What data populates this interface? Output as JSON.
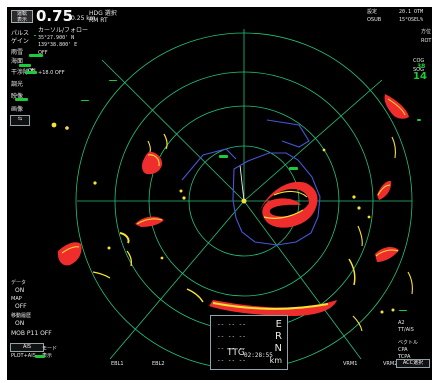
{
  "top_left": {
    "mode_box_line1": "運転",
    "mode_box_line2": "表示",
    "range_value": "0.75",
    "range_sub": "/0.25 km",
    "head_mode": "HDG 選択",
    "display_mode": "RM RT",
    "lines": [
      "パルス",
      "ゲイン",
      "雨雪",
      "海面",
      "干渉除去",
      "調光",
      "映像",
      "画像"
    ],
    "cursor_label": "カーソル/フォロー",
    "cursor_values": [
      "35°27.900' N",
      "139°38.800' E"
    ],
    "small_labels": [
      "OFF",
      "ON",
      "+18.0 OFF"
    ]
  },
  "top_right": {
    "labels": [
      "設定",
      "OSUB"
    ],
    "values": [
      "20.1 OTM",
      "15°OSEL%"
    ],
    "lines": [
      "方位",
      "ROT",
      "COG",
      "SOG"
    ],
    "cog_value": "38",
    "sog_value": "14"
  },
  "left_panel": {
    "labels": [
      "データ",
      "ON",
      "MAP",
      "OFF",
      "移動履歴",
      "ON"
    ],
    "mob_label": "MOB P11 OFF",
    "bottom_labels": [
      "AIS",
      "PLOT+AIS",
      "モード",
      "表示"
    ]
  },
  "bottom": {
    "ebl1": "EBL1",
    "ebl2": "EBL2",
    "vrm1": "VRM1",
    "vrm2": "VRM2",
    "ttg": "TTG",
    "ttg_time": "02:28:55",
    "e_label": "E",
    "r_label": "R",
    "n_label": "N",
    "km_label": "km"
  },
  "right_panel": {
    "lines": [
      "A2",
      "TT/AIS",
      "ベクトル",
      "CPA",
      "TCPA",
      "ACC選択"
    ]
  },
  "colors": {
    "background": "#000000",
    "ring": "#24c27a",
    "echo_red": "#f02d2d",
    "echo_yellow": "#f5e332",
    "target_blue": "#4756d6",
    "ui_text": "#e8e8e8",
    "button_green": "#1dcb3a"
  }
}
